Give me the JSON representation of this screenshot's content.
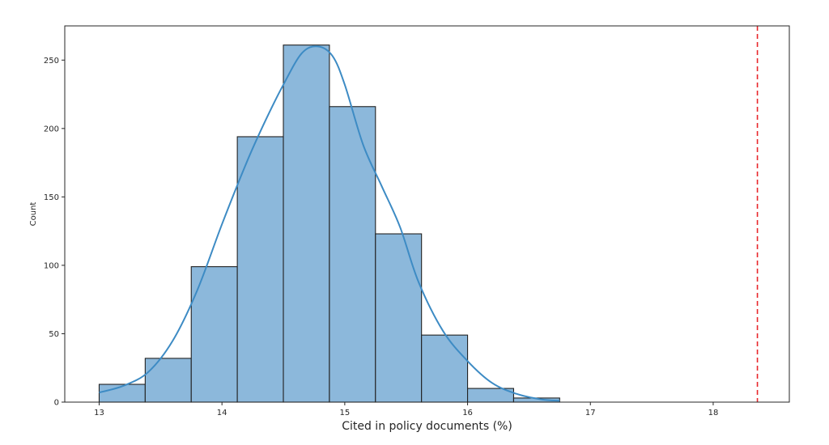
{
  "chart_data": {
    "type": "bar",
    "subtype": "histogram",
    "xlabel": "Cited in policy documents (%)",
    "ylabel": "Count",
    "xlim": [
      12.72,
      18.62
    ],
    "ylim": [
      0,
      275
    ],
    "xticks": [
      13,
      14,
      15,
      16,
      17,
      18
    ],
    "yticks": [
      0,
      50,
      100,
      150,
      200,
      250
    ],
    "bin_edges": [
      13.0,
      13.375,
      13.75,
      14.125,
      14.5,
      14.875,
      15.25,
      15.625,
      16.0,
      16.375,
      16.75
    ],
    "counts": [
      13,
      32,
      99,
      194,
      261,
      216,
      123,
      49,
      10,
      3
    ],
    "bar_color": "#8cb8db",
    "bar_edge_color": "#222222",
    "kde": {
      "color": "#3d8bc4",
      "x": [
        13.0,
        13.2,
        13.4,
        13.6,
        13.8,
        14.0,
        14.2,
        14.35,
        14.5,
        14.65,
        14.78,
        14.9,
        15.0,
        15.15,
        15.3,
        15.45,
        15.6,
        15.8,
        16.0,
        16.2,
        16.4,
        16.6,
        16.75
      ],
      "y": [
        7,
        12,
        22,
        45,
        82,
        130,
        175,
        205,
        232,
        255,
        260,
        253,
        232,
        188,
        158,
        128,
        88,
        52,
        30,
        14,
        6,
        2,
        1
      ]
    },
    "reference_line": {
      "x": 18.36,
      "color": "#e8262b",
      "style": "dashed"
    },
    "grid": false,
    "legend": "none"
  }
}
